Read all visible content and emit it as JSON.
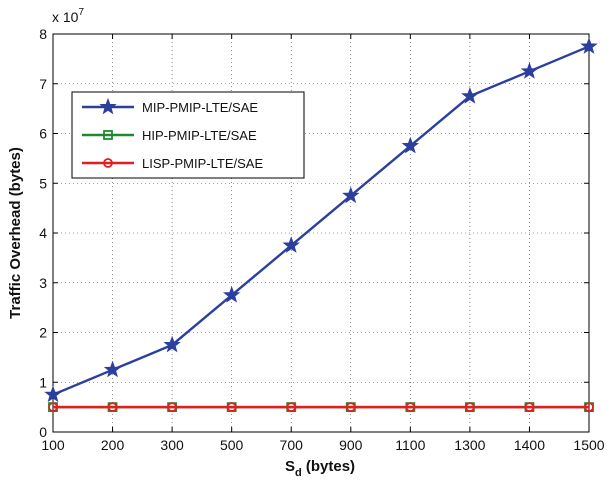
{
  "chart_data": {
    "type": "line",
    "x_categories": [
      "100",
      "200",
      "300",
      "500",
      "700",
      "900",
      "1100",
      "1300",
      "1400",
      "1500"
    ],
    "xlabel_main": "S",
    "xlabel_sub": "d",
    "xlabel_suffix": " (bytes)",
    "ylabel": "Traffic Overhead (bytes)",
    "y_exponent_label": "x 10",
    "y_exponent_power": "7",
    "ylim": [
      0,
      8
    ],
    "y_ticks": [
      "0",
      "1",
      "2",
      "3",
      "4",
      "5",
      "6",
      "7",
      "8"
    ],
    "grid": "dotted",
    "legend_position": "upper-left",
    "series": [
      {
        "name": "MIP-PMIP-LTE/SAE",
        "color": "#2b3f9e",
        "marker": "star",
        "values": [
          0.75,
          1.25,
          1.75,
          2.75,
          3.75,
          4.75,
          5.75,
          6.75,
          7.25,
          7.75
        ]
      },
      {
        "name": "HIP-PMIP-LTE/SAE",
        "color": "#1e8a2e",
        "marker": "square",
        "values": [
          0.5,
          0.5,
          0.5,
          0.5,
          0.5,
          0.5,
          0.5,
          0.5,
          0.5,
          0.5
        ]
      },
      {
        "name": "LISP-PMIP-LTE/SAE",
        "color": "#e02020",
        "marker": "circle",
        "values": [
          0.5,
          0.5,
          0.5,
          0.5,
          0.5,
          0.5,
          0.5,
          0.5,
          0.5,
          0.5
        ]
      }
    ]
  }
}
